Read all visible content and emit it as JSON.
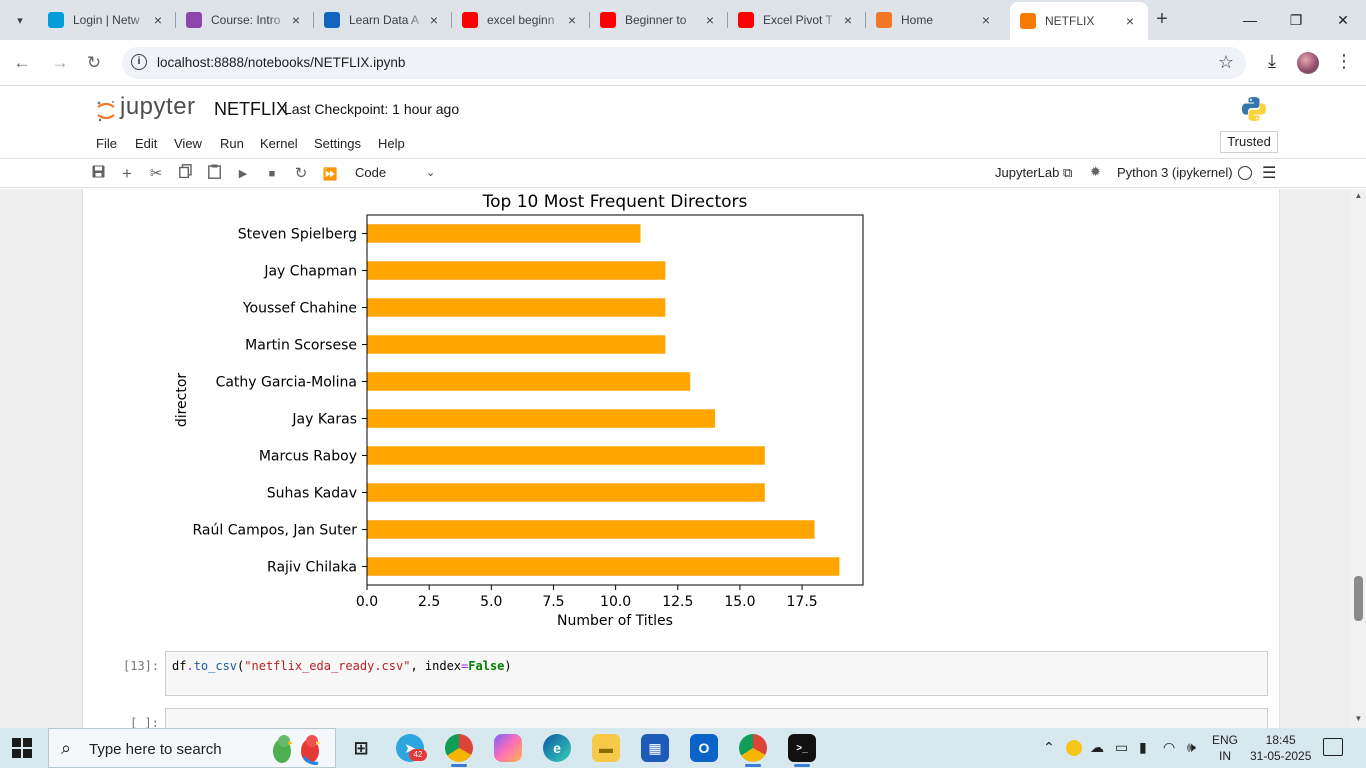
{
  "browser": {
    "tabs": [
      {
        "title": "Login | Netw",
        "icon": "cisco-icon",
        "color": "#049fd9"
      },
      {
        "title": "Course: Intro",
        "icon": "course-icon",
        "color": "#8e44ad"
      },
      {
        "title": "Learn Data A",
        "icon": "medium-icon",
        "color": "#1565c0"
      },
      {
        "title": "excel beginn",
        "icon": "youtube-icon",
        "color": "#ff0000"
      },
      {
        "title": "Beginner to",
        "icon": "youtube-icon",
        "color": "#ff0000"
      },
      {
        "title": "Excel Pivot T",
        "icon": "youtube-icon",
        "color": "#ff0000"
      },
      {
        "title": "Home",
        "icon": "jupyter-icon",
        "color": "#f37626"
      },
      {
        "title": "NETFLIX",
        "icon": "notebook-icon",
        "color": "#f57c00"
      }
    ],
    "url": "localhost:8888/notebooks/NETFLIX.ipynb"
  },
  "jupyter": {
    "logo_text": "jupyter",
    "notebook_name": "NETFLIX",
    "checkpoint": "Last Checkpoint: 1 hour ago",
    "menu": [
      "File",
      "Edit",
      "View",
      "Run",
      "Kernel",
      "Settings",
      "Help"
    ],
    "trusted": "Trusted",
    "cell_type": "Code",
    "jupyterlab_link": "JupyterLab",
    "kernel_name": "Python 3 (ipykernel)"
  },
  "chart_data": {
    "type": "bar",
    "orientation": "horizontal",
    "title": "Top 10 Most Frequent Directors",
    "xlabel": "Number of Titles",
    "ylabel": "director",
    "categories": [
      "Rajiv Chilaka",
      "Raúl Campos, Jan Suter",
      "Suhas Kadav",
      "Marcus Raboy",
      "Jay Karas",
      "Cathy Garcia-Molina",
      "Martin Scorsese",
      "Youssef Chahine",
      "Jay Chapman",
      "Steven Spielberg"
    ],
    "values": [
      19,
      18,
      16,
      16,
      14,
      13,
      12,
      12,
      12,
      11
    ],
    "xlim": [
      0,
      19.95
    ],
    "xticks": [
      "0.0",
      "2.5",
      "5.0",
      "7.5",
      "10.0",
      "12.5",
      "15.0",
      "17.5"
    ],
    "bar_color": "#ffa500",
    "grid": false,
    "legend": "none"
  },
  "cells": [
    {
      "prompt": "[13]:",
      "code": {
        "obj": "df",
        "method": "to_csv",
        "arg": "\"netflix_eda_ready.csv\"",
        "kwname": "index",
        "kwval": "False"
      }
    },
    {
      "prompt": "[ ]:"
    }
  ],
  "taskbar": {
    "search_placeholder": "Type here to search",
    "telegram_badge": "42",
    "lang_top": "ENG",
    "lang_bottom": "IN",
    "time": "18:45",
    "date": "31-05-2025"
  }
}
